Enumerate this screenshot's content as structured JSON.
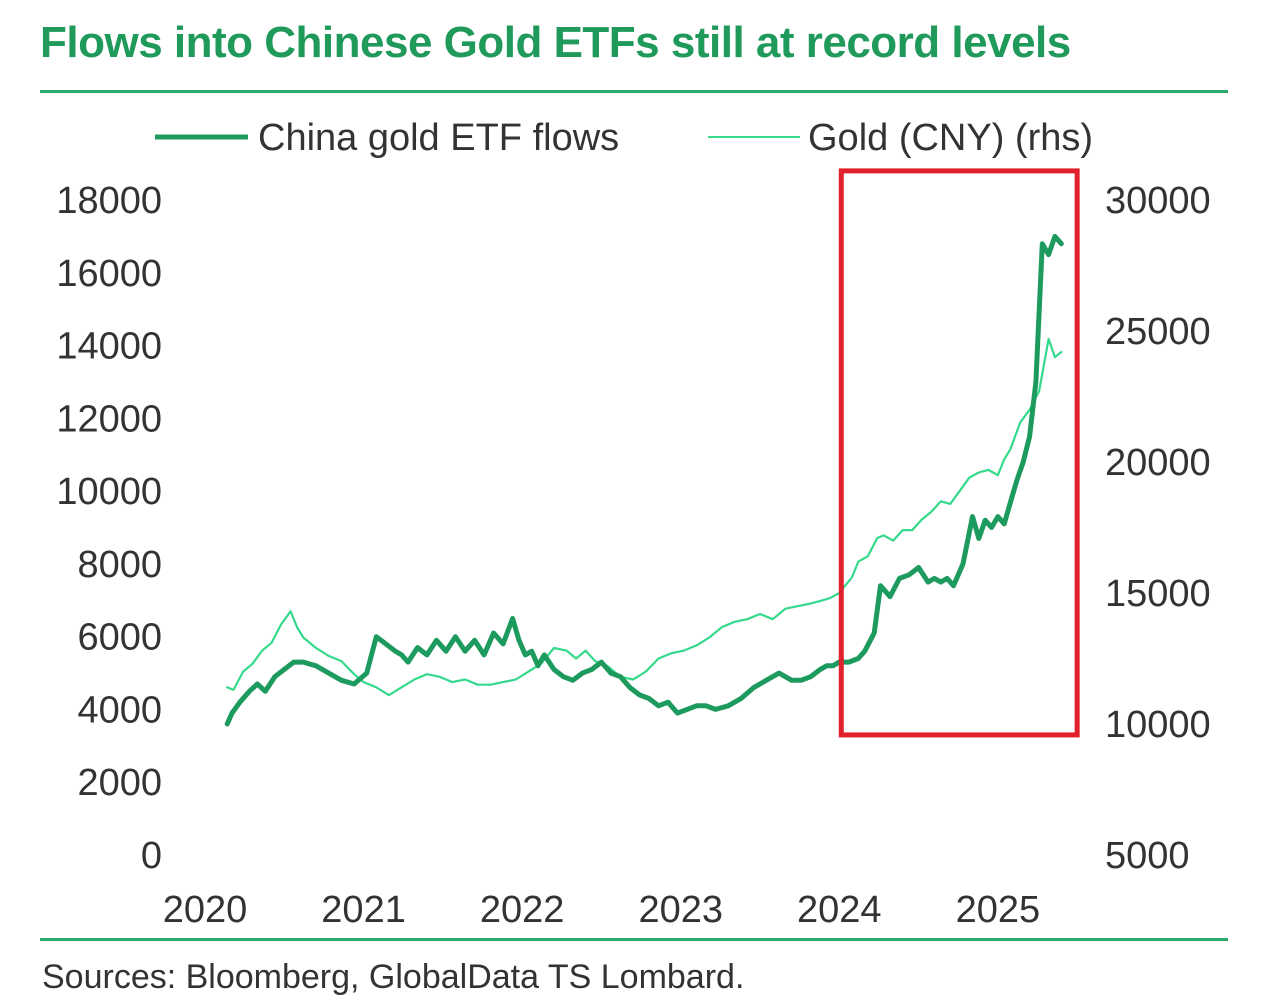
{
  "title": "Flows into Chinese Gold ETFs still at record levels",
  "source": "Sources: Bloomberg, GlobalData TS Lombard.",
  "colors": {
    "title": "#1f9a5a",
    "etf_line": "#1d9a5e",
    "gold_line": "#35d98c",
    "highlight_box": "#e0202a",
    "rule": "#2daa6e"
  },
  "chart_data": {
    "type": "line",
    "legend": [
      "China gold ETF flows",
      "Gold (CNY) (rhs)"
    ],
    "legend_position": "top",
    "grid": false,
    "x_ticks": [
      "2020",
      "2021",
      "2022",
      "2023",
      "2024",
      "2025"
    ],
    "xlim": [
      2020.0,
      2025.6
    ],
    "y_left_ticks": [
      "0",
      "2000",
      "4000",
      "6000",
      "8000",
      "10000",
      "12000",
      "14000",
      "16000",
      "18000"
    ],
    "y_left_lim": [
      0,
      18000
    ],
    "y_right_ticks": [
      "5000",
      "10000",
      "15000",
      "20000",
      "25000",
      "30000"
    ],
    "y_right_lim": [
      5000,
      30000
    ],
    "highlight": {
      "x_range": [
        2024.0,
        2025.5
      ],
      "y_left_range": [
        3300,
        18800
      ]
    },
    "series": [
      {
        "name": "China gold ETF flows",
        "axis": "left",
        "x": [
          2020.14,
          2020.17,
          2020.22,
          2020.28,
          2020.33,
          2020.38,
          2020.44,
          2020.5,
          2020.56,
          2020.62,
          2020.7,
          2020.78,
          2020.86,
          2020.94,
          2021.02,
          2021.08,
          2021.14,
          2021.2,
          2021.24,
          2021.28,
          2021.34,
          2021.4,
          2021.46,
          2021.52,
          2021.58,
          2021.64,
          2021.7,
          2021.76,
          2021.82,
          2021.88,
          2021.94,
          2021.98,
          2022.02,
          2022.06,
          2022.1,
          2022.14,
          2022.2,
          2022.26,
          2022.32,
          2022.38,
          2022.44,
          2022.5,
          2022.56,
          2022.62,
          2022.68,
          2022.74,
          2022.8,
          2022.86,
          2022.92,
          2022.98,
          2023.04,
          2023.1,
          2023.16,
          2023.22,
          2023.3,
          2023.38,
          2023.46,
          2023.54,
          2023.62,
          2023.7,
          2023.76,
          2023.82,
          2023.88,
          2023.92,
          2023.96,
          2024.0,
          2024.06,
          2024.12,
          2024.16,
          2024.22,
          2024.26,
          2024.32,
          2024.38,
          2024.44,
          2024.5,
          2024.56,
          2024.6,
          2024.64,
          2024.68,
          2024.72,
          2024.78,
          2024.84,
          2024.88,
          2024.92,
          2024.96,
          2025.0,
          2025.04,
          2025.08,
          2025.12,
          2025.16,
          2025.2,
          2025.24,
          2025.28,
          2025.32,
          2025.36,
          2025.4
        ],
        "y": [
          3600,
          3900,
          4200,
          4500,
          4700,
          4500,
          4900,
          5100,
          5300,
          5300,
          5200,
          5000,
          4800,
          4700,
          5000,
          6000,
          5800,
          5600,
          5500,
          5300,
          5700,
          5500,
          5900,
          5600,
          6000,
          5600,
          5900,
          5500,
          6100,
          5800,
          6500,
          5900,
          5500,
          5600,
          5200,
          5500,
          5100,
          4900,
          4800,
          5000,
          5100,
          5300,
          5000,
          4900,
          4600,
          4400,
          4300,
          4100,
          4200,
          3900,
          4000,
          4100,
          4100,
          4000,
          4100,
          4300,
          4600,
          4800,
          5000,
          4800,
          4800,
          4900,
          5100,
          5200,
          5200,
          5300,
          5300,
          5400,
          5600,
          6100,
          7400,
          7100,
          7600,
          7700,
          7900,
          7500,
          7600,
          7500,
          7600,
          7400,
          8000,
          9300,
          8700,
          9200,
          9000,
          9300,
          9100,
          9700,
          10300,
          10800,
          11500,
          13000,
          16800,
          16500,
          17000,
          16800
        ]
      },
      {
        "name": "Gold (CNY) (rhs)",
        "axis": "right",
        "x": [
          2020.14,
          2020.18,
          2020.24,
          2020.3,
          2020.36,
          2020.42,
          2020.48,
          2020.54,
          2020.58,
          2020.62,
          2020.7,
          2020.78,
          2020.86,
          2020.94,
          2021.0,
          2021.08,
          2021.16,
          2021.24,
          2021.32,
          2021.4,
          2021.48,
          2021.56,
          2021.64,
          2021.72,
          2021.8,
          2021.88,
          2021.96,
          2022.04,
          2022.12,
          2022.2,
          2022.28,
          2022.34,
          2022.4,
          2022.46,
          2022.54,
          2022.62,
          2022.7,
          2022.78,
          2022.86,
          2022.94,
          2023.02,
          2023.1,
          2023.18,
          2023.26,
          2023.34,
          2023.42,
          2023.5,
          2023.58,
          2023.66,
          2023.74,
          2023.82,
          2023.88,
          2023.94,
          2024.0,
          2024.04,
          2024.08,
          2024.12,
          2024.18,
          2024.24,
          2024.28,
          2024.34,
          2024.4,
          2024.46,
          2024.52,
          2024.58,
          2024.64,
          2024.7,
          2024.76,
          2024.82,
          2024.88,
          2024.94,
          2025.0,
          2025.04,
          2025.08,
          2025.14,
          2025.2,
          2025.26,
          2025.32,
          2025.36,
          2025.4
        ],
        "y": [
          11400,
          11300,
          12000,
          12300,
          12800,
          13100,
          13800,
          14300,
          13700,
          13300,
          12900,
          12600,
          12400,
          11900,
          11600,
          11400,
          11100,
          11400,
          11700,
          11900,
          11800,
          11600,
          11700,
          11500,
          11500,
          11600,
          11700,
          12000,
          12300,
          12900,
          12800,
          12500,
          12800,
          12400,
          12200,
          11800,
          11700,
          12000,
          12500,
          12700,
          12800,
          13000,
          13300,
          13700,
          13900,
          14000,
          14200,
          14000,
          14400,
          14500,
          14600,
          14700,
          14800,
          15000,
          15300,
          15600,
          16200,
          16400,
          17100,
          17200,
          17000,
          17400,
          17400,
          17800,
          18100,
          18500,
          18400,
          18900,
          19400,
          19600,
          19700,
          19500,
          20100,
          20500,
          21500,
          22000,
          22700,
          24700,
          24000,
          24200
        ]
      }
    ]
  }
}
